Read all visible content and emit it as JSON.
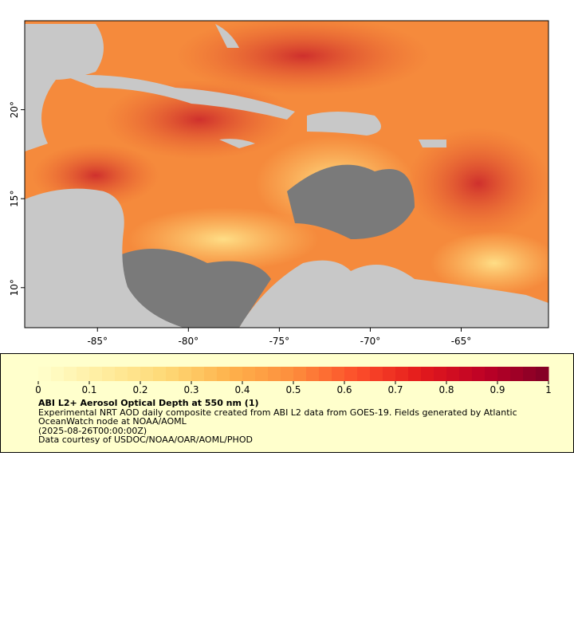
{
  "map": {
    "xlim": [
      -89,
      -60.2
    ],
    "ylim": [
      7.75,
      25
    ],
    "xticks": [
      {
        "value": -85,
        "label": "-85°"
      },
      {
        "value": -80,
        "label": "-80°"
      },
      {
        "value": -75,
        "label": "-75°"
      },
      {
        "value": -70,
        "label": "-70°"
      },
      {
        "value": -65,
        "label": "-65°"
      }
    ],
    "yticks": [
      {
        "value": 10,
        "label": "10°"
      },
      {
        "value": 15,
        "label": "15°"
      },
      {
        "value": 20,
        "label": "20°"
      }
    ]
  },
  "colorbar": {
    "lim": [
      0,
      1
    ],
    "ticks": [
      0,
      0.1,
      0.2,
      0.3,
      0.4,
      0.5,
      0.6,
      0.7,
      0.8,
      0.9,
      1
    ],
    "colormap": [
      "#ffffcc",
      "#ffeda0",
      "#fed976",
      "#feb24c",
      "#fd8d3c",
      "#fc4e2a",
      "#e31a1c",
      "#bd0026",
      "#800026"
    ]
  },
  "caption": {
    "title": "ABI L2+ Aerosol Optical Depth at 550 nm (1)",
    "description": "Experimental NRT AOD daily composite created from ABI L2 data from GOES-19. Fields generated by Atlantic OceanWatch node at NOAA/AOML",
    "time": "(2025-08-26T00:00:00Z)",
    "credit": "Data courtesy of USDOC/NOAA/OAR/AOML/PHOD"
  }
}
